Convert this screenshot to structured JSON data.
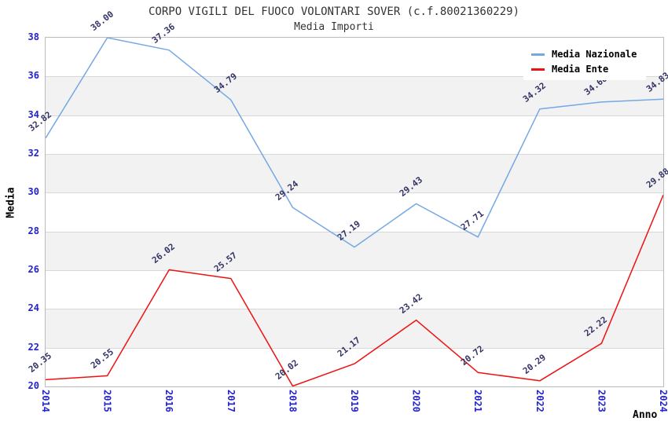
{
  "chart_data": {
    "type": "line",
    "title": "CORPO VIGILI DEL FUOCO VOLONTARI SOVER (c.f.80021360229)",
    "subtitle": "Media Importi",
    "xlabel": "Anno",
    "ylabel": "Media",
    "categories": [
      "2014",
      "2015",
      "2016",
      "2017",
      "2018",
      "2019",
      "2020",
      "2021",
      "2022",
      "2023",
      "2024"
    ],
    "series": [
      {
        "name": "Media Nazionale",
        "color": "#74A8E4",
        "values": [
          32.82,
          38.0,
          37.36,
          34.79,
          29.24,
          27.19,
          29.43,
          27.71,
          34.32,
          34.68,
          34.83
        ]
      },
      {
        "name": "Media Ente",
        "color": "#EE1111",
        "values": [
          20.35,
          20.55,
          26.02,
          25.57,
          20.02,
          21.17,
          23.42,
          20.72,
          20.29,
          22.22,
          29.88
        ]
      }
    ],
    "ylim": [
      20,
      38
    ],
    "ytick_step": 2,
    "grid": true,
    "legend_position": "top-right",
    "band_colors": [
      "#FFFFFF",
      "#F2F2F2"
    ],
    "colors": {
      "tick_label": "#2323CC",
      "point_label": "#333366",
      "grid_line": "#D8D8D8",
      "plot_border": "#BBBBBB",
      "title_text": "#333333",
      "axis_title_text": "#000000",
      "legend_text": "#000000",
      "legend_bg": "#FFFFFF"
    },
    "point_label_decimals": 2
  }
}
